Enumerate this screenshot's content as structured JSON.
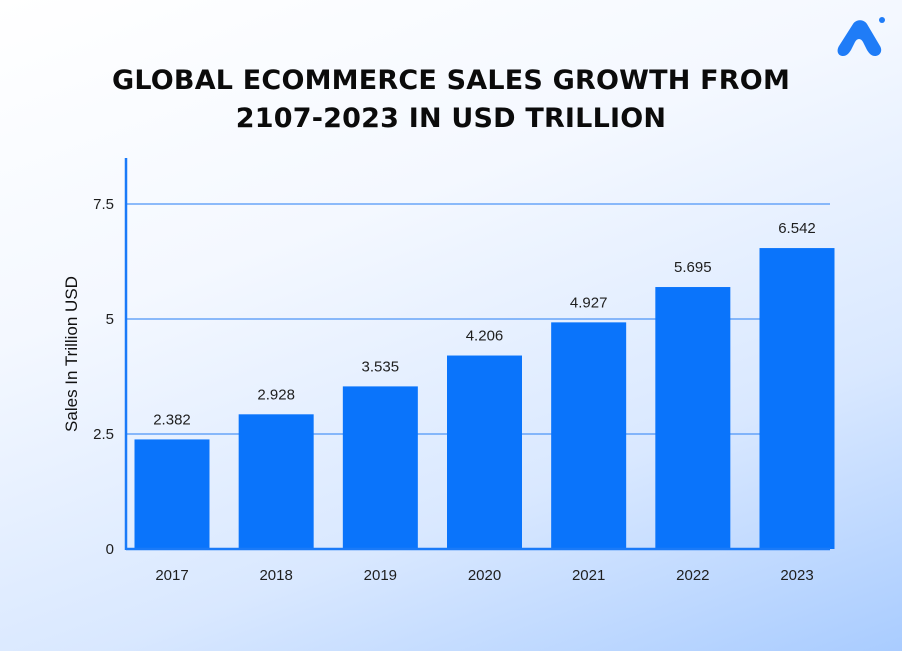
{
  "title_lines": [
    "GLOBAL ECOMMERCE SALES GROWTH FROM",
    "2107-2023 IN USD TRILLION"
  ],
  "logo_icon": "brand-a-logo-icon",
  "colors": {
    "bar": "#0a74fb",
    "axis": "#1a7af8",
    "gridline": "#4d95f7",
    "logo": "#1f7cf7"
  },
  "chart_data": {
    "type": "bar",
    "title": "GLOBAL ECOMMERCE SALES GROWTH FROM 2107-2023 IN USD TRILLION",
    "categories": [
      "2017",
      "2018",
      "2019",
      "2020",
      "2021",
      "2022",
      "2023"
    ],
    "values": [
      2.382,
      2.928,
      3.535,
      4.206,
      4.927,
      5.695,
      6.542
    ],
    "data_labels": [
      "2.382",
      "2.928",
      "3.535",
      "4.206",
      "4.927",
      "5.695",
      "6.542"
    ],
    "xlabel": "",
    "ylabel": "Sales In Trillion USD",
    "ylim": [
      0,
      8.5
    ],
    "yticks": [
      0,
      2.5,
      5,
      7.5
    ],
    "ytick_labels": [
      "0",
      "2.5",
      "5",
      "7.5"
    ],
    "grid": true,
    "legend": "none"
  }
}
